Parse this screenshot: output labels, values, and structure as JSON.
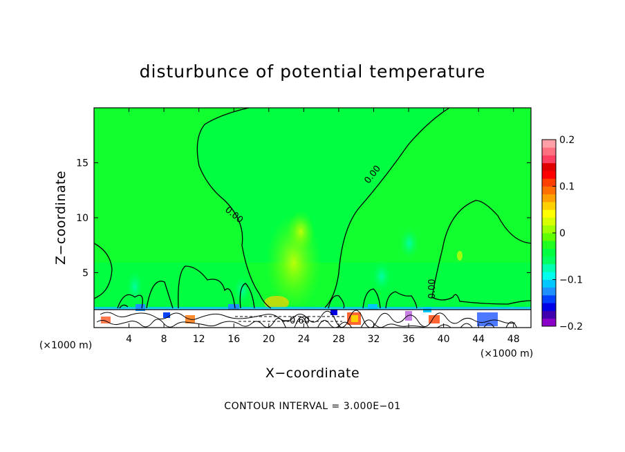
{
  "chart_data": {
    "type": "heatmap",
    "title": "disturbunce of potential temperature",
    "xlabel": "X−coordinate",
    "ylabel": "Z−coordinate",
    "x_unit_label": "(×1000 m)",
    "xlim": [
      0,
      50
    ],
    "ylim": [
      0,
      20
    ],
    "x_ticks": [
      4,
      8,
      12,
      16,
      20,
      24,
      28,
      32,
      36,
      40,
      44,
      48
    ],
    "x_tick_labels": [
      "4",
      "8",
      "12",
      "16",
      "20",
      "24",
      "28",
      "32",
      "36",
      "40",
      "44",
      "48"
    ],
    "y_ticks": [
      5,
      10,
      15
    ],
    "y_tick_labels": [
      "5",
      "10",
      "15"
    ],
    "colorbar": {
      "min": -0.2,
      "max": 0.2,
      "ticks": [
        0.2,
        0.1,
        0,
        -0.1,
        -0.2
      ],
      "tick_labels": [
        "0.2",
        "0.1",
        "0",
        "−0.1",
        "−0.2"
      ],
      "colors": [
        "#8b00c8",
        "#4000b0",
        "#0000e6",
        "#0040ff",
        "#1e90ff",
        "#00c8ff",
        "#00ffee",
        "#00ffb0",
        "#00ff60",
        "#00ff40",
        "#20ff20",
        "#60ff00",
        "#a0ff00",
        "#d8ff00",
        "#ffff00",
        "#ffd000",
        "#ffa000",
        "#ff7000",
        "#ff4000",
        "#ff0000",
        "#e00000",
        "#ff4060",
        "#ff7080",
        "#ffa0a8"
      ]
    },
    "contour_labels": [
      "0.00",
      "0.00",
      "0.00",
      "−0.60"
    ],
    "contour_interval_text": "CONTOUR INTERVAL = 3.000E−01"
  }
}
